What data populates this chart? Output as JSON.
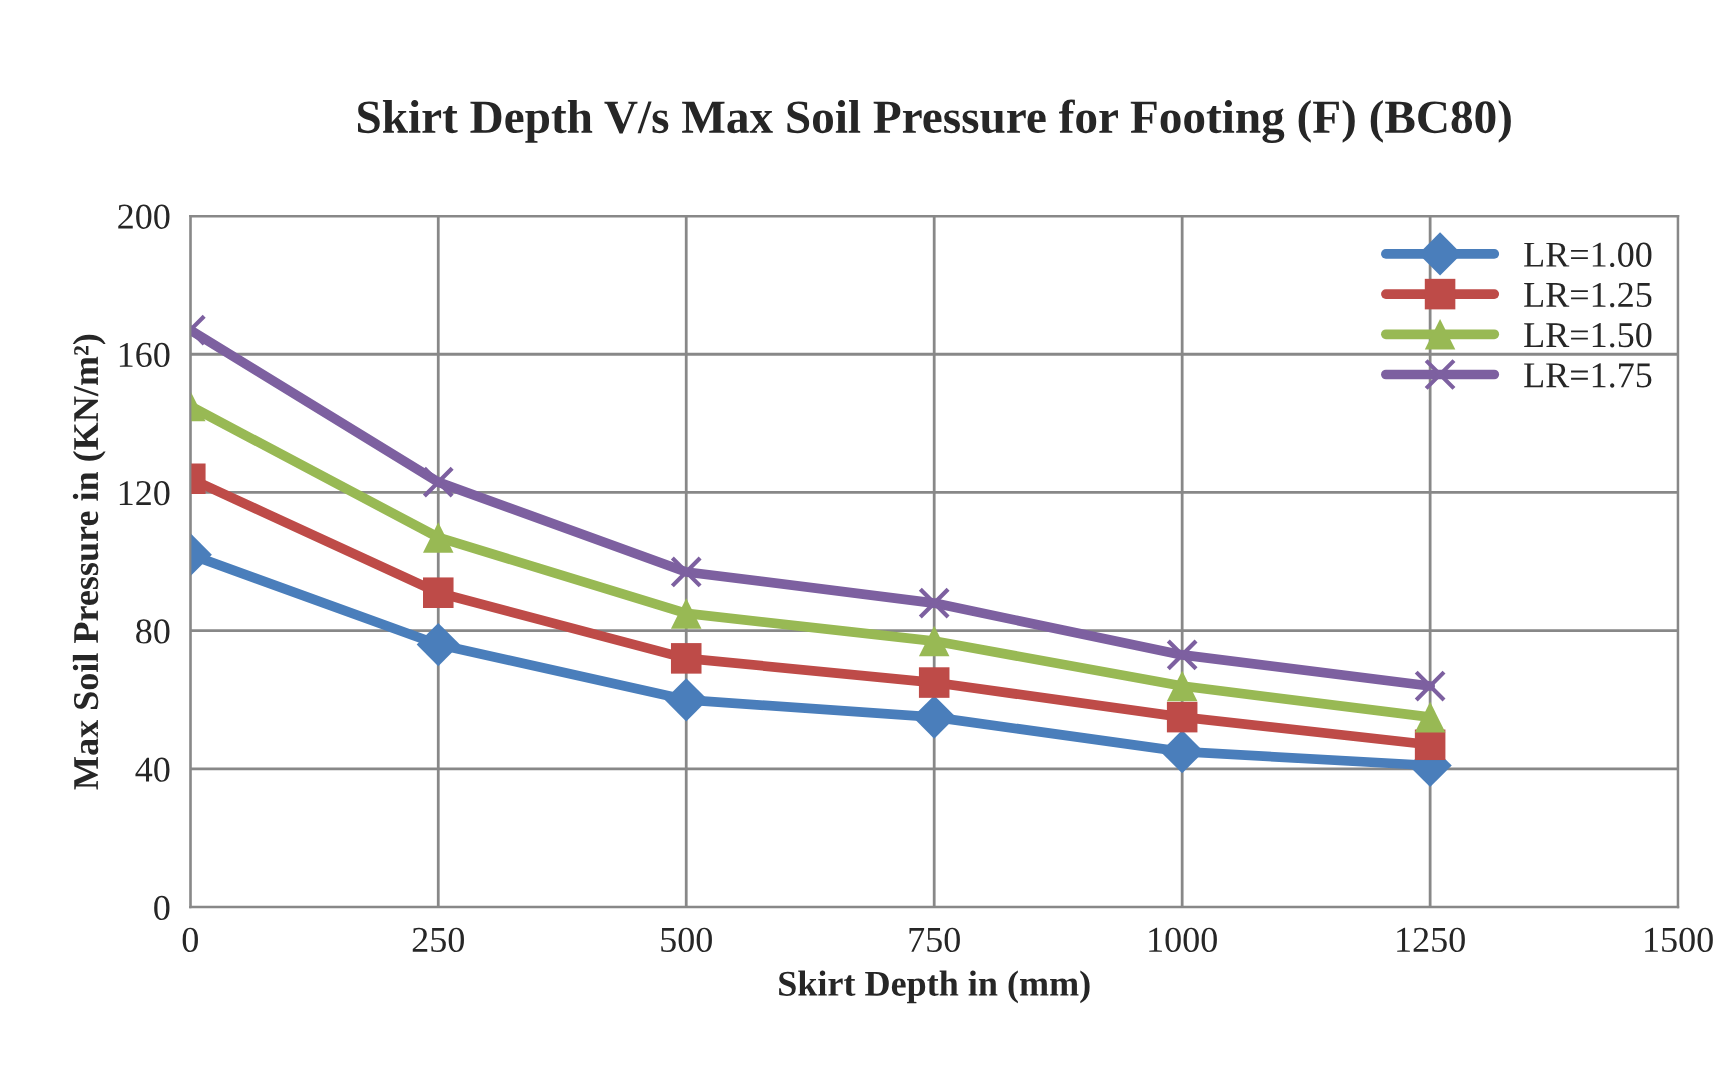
{
  "chart_data": {
    "type": "line",
    "title": "Skirt Depth V/s Max Soil Pressure for Footing (F) (BC80)",
    "xlabel": "Skirt Depth in (mm)",
    "ylabel": "Max Soil Pressure in (KN/m²)",
    "x": [
      0,
      250,
      500,
      750,
      1000,
      1250
    ],
    "series": [
      {
        "name": "LR=1.00",
        "color": "#4a7ebb",
        "marker": "diamond",
        "values": [
          102,
          76,
          60,
          55,
          45,
          41
        ]
      },
      {
        "name": "LR=1.25",
        "color": "#be4b48",
        "marker": "square",
        "values": [
          124,
          91,
          72,
          65,
          55,
          47
        ]
      },
      {
        "name": "LR=1.50",
        "color": "#98b954",
        "marker": "triangle",
        "values": [
          145,
          107,
          85,
          77,
          64,
          55
        ]
      },
      {
        "name": "LR=1.75",
        "color": "#7d60a0",
        "marker": "cross",
        "values": [
          167,
          123,
          97,
          88,
          73,
          64
        ]
      }
    ],
    "xlim": [
      0,
      1500
    ],
    "xticks": [
      0,
      250,
      500,
      750,
      1000,
      1250,
      1500
    ],
    "ylim": [
      0,
      200
    ],
    "yticks": [
      0,
      40,
      80,
      120,
      160,
      200
    ],
    "grid": true,
    "legend": "top right",
    "line_style": "solid"
  }
}
